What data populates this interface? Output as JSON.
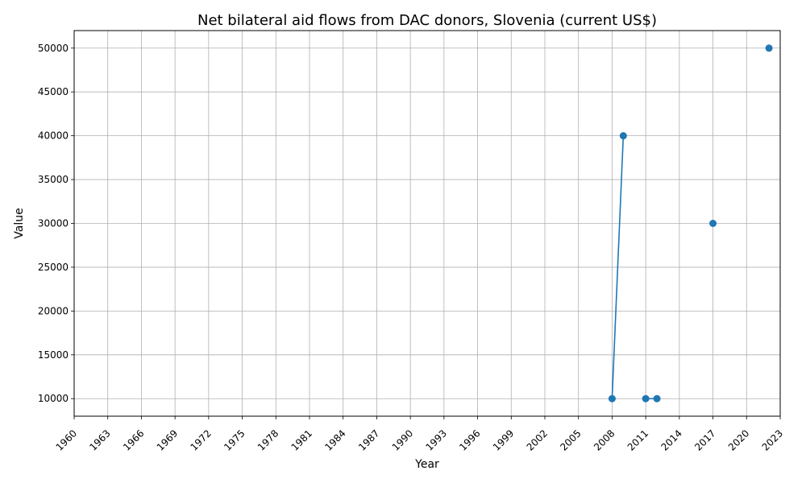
{
  "chart_data": {
    "type": "line",
    "title": "Net bilateral aid flows from DAC donors, Slovenia (current US$)",
    "xlabel": "Year",
    "ylabel": "Value",
    "xlim": [
      1960,
      2023
    ],
    "ylim": [
      8000,
      52000
    ],
    "x_ticks": [
      1960,
      1963,
      1966,
      1969,
      1972,
      1975,
      1978,
      1981,
      1984,
      1987,
      1990,
      1993,
      1996,
      1999,
      2002,
      2005,
      2008,
      2011,
      2014,
      2017,
      2020,
      2023
    ],
    "y_ticks": [
      10000,
      15000,
      20000,
      25000,
      30000,
      35000,
      40000,
      45000,
      50000
    ],
    "grid": true,
    "series": [
      {
        "color": "#1f77b4",
        "points": [
          {
            "x": 2008,
            "y": 10000
          },
          {
            "x": 2009,
            "y": 40000
          },
          {
            "x": 2010,
            "y": null
          },
          {
            "x": 2011,
            "y": 10000
          },
          {
            "x": 2012,
            "y": 10000
          },
          {
            "x": 2013,
            "y": null
          },
          {
            "x": 2017,
            "y": 30000
          },
          {
            "x": 2018,
            "y": null
          },
          {
            "x": 2022,
            "y": 50000
          }
        ]
      }
    ]
  }
}
